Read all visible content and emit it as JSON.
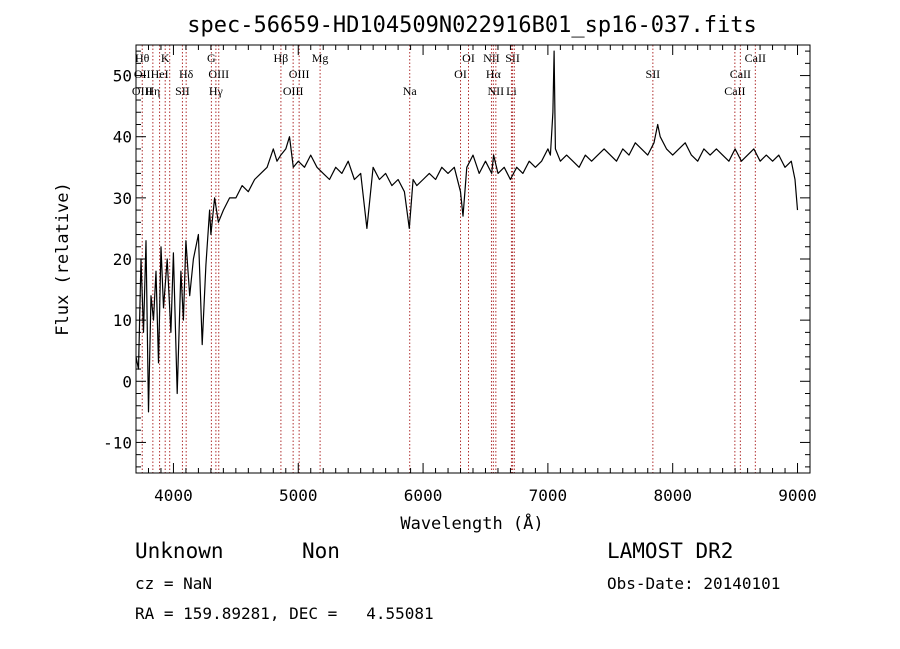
{
  "chart_data": {
    "type": "line",
    "title": "spec-56659-HD104509N022916B01_sp16-037.fits",
    "xlabel": "Wavelength (Å)",
    "ylabel": "Flux (relative)",
    "xlim": [
      3700,
      9100
    ],
    "ylim": [
      -15,
      55
    ],
    "xticks": [
      4000,
      5000,
      6000,
      7000,
      8000,
      9000
    ],
    "yticks": [
      -10,
      0,
      10,
      20,
      30,
      40,
      50
    ],
    "grid": false,
    "series": [
      {
        "color": "#000000",
        "x": [
          3700,
          3720,
          3740,
          3760,
          3780,
          3800,
          3820,
          3840,
          3860,
          3880,
          3900,
          3920,
          3950,
          3980,
          4000,
          4030,
          4060,
          4080,
          4100,
          4130,
          4160,
          4200,
          4230,
          4260,
          4290,
          4300,
          4330,
          4360,
          4400,
          4450,
          4500,
          4550,
          4600,
          4650,
          4700,
          4750,
          4800,
          4830,
          4860,
          4900,
          4930,
          4960,
          5000,
          5050,
          5100,
          5150,
          5200,
          5250,
          5300,
          5350,
          5400,
          5450,
          5500,
          5550,
          5600,
          5650,
          5700,
          5750,
          5800,
          5850,
          5890,
          5920,
          5950,
          6000,
          6050,
          6100,
          6150,
          6200,
          6250,
          6300,
          6320,
          6350,
          6400,
          6450,
          6500,
          6550,
          6565,
          6600,
          6650,
          6700,
          6750,
          6800,
          6850,
          6900,
          6950,
          7000,
          7020,
          7040,
          7050,
          7060,
          7100,
          7150,
          7200,
          7250,
          7300,
          7350,
          7400,
          7450,
          7500,
          7550,
          7600,
          7650,
          7700,
          7750,
          7800,
          7850,
          7880,
          7900,
          7950,
          8000,
          8050,
          8100,
          8150,
          8200,
          8250,
          8300,
          8350,
          8400,
          8450,
          8500,
          8550,
          8600,
          8650,
          8700,
          8750,
          8800,
          8850,
          8900,
          8950,
          8980,
          9000
        ],
        "values": [
          4,
          2,
          20,
          8,
          23,
          -5,
          14,
          10,
          18,
          3,
          22,
          12,
          20,
          8,
          21,
          -2,
          18,
          10,
          23,
          14,
          20,
          24,
          6,
          19,
          28,
          24,
          30,
          26,
          28,
          30,
          30,
          32,
          31,
          33,
          34,
          35,
          38,
          36,
          37,
          38,
          40,
          35,
          36,
          35,
          37,
          35,
          34,
          33,
          35,
          34,
          36,
          33,
          34,
          25,
          35,
          33,
          34,
          32,
          33,
          31,
          25,
          33,
          32,
          33,
          34,
          33,
          35,
          34,
          35,
          31,
          27,
          35,
          37,
          34,
          36,
          34,
          37,
          34,
          35,
          33,
          35,
          34,
          36,
          35,
          36,
          38,
          37,
          44,
          54,
          38,
          36,
          37,
          36,
          35,
          37,
          36,
          37,
          38,
          37,
          36,
          38,
          37,
          39,
          38,
          37,
          39,
          42,
          40,
          38,
          37,
          38,
          39,
          37,
          36,
          38,
          37,
          38,
          37,
          36,
          38,
          36,
          37,
          38,
          36,
          37,
          36,
          37,
          35,
          36,
          33,
          28
        ]
      }
    ],
    "lines": [
      {
        "x": 3750,
        "labels": [
          {
            "text": "Hθ",
            "row": 1
          },
          {
            "text": "OII",
            "row": 2
          },
          {
            "text": "OIII",
            "row": 3
          }
        ]
      },
      {
        "x": 3835,
        "labels": [
          {
            "text": "Hη",
            "row": 3
          }
        ]
      },
      {
        "x": 3889,
        "labels": [
          {
            "text": "HeI",
            "row": 2
          }
        ]
      },
      {
        "x": 3934,
        "labels": [
          {
            "text": "K",
            "row": 1
          }
        ]
      },
      {
        "x": 3970,
        "labels": []
      },
      {
        "x": 4072,
        "labels": [
          {
            "text": "SII",
            "row": 3
          }
        ]
      },
      {
        "x": 4102,
        "labels": [
          {
            "text": "Hδ",
            "row": 2
          }
        ]
      },
      {
        "x": 4304,
        "labels": [
          {
            "text": "G",
            "row": 1
          }
        ]
      },
      {
        "x": 4340,
        "labels": [
          {
            "text": "Hγ",
            "row": 3
          }
        ]
      },
      {
        "x": 4363,
        "labels": [
          {
            "text": "OIII",
            "row": 2
          }
        ]
      },
      {
        "x": 4861,
        "labels": [
          {
            "text": "Hβ",
            "row": 1
          }
        ]
      },
      {
        "x": 4959,
        "labels": [
          {
            "text": "OIII",
            "row": 3
          }
        ]
      },
      {
        "x": 5007,
        "labels": [
          {
            "text": "OIII",
            "row": 2
          }
        ]
      },
      {
        "x": 5175,
        "labels": [
          {
            "text": "Mg",
            "row": 1
          }
        ]
      },
      {
        "x": 5893,
        "labels": [
          {
            "text": "Na",
            "row": 3
          }
        ]
      },
      {
        "x": 6300,
        "labels": [
          {
            "text": "OI",
            "row": 2
          }
        ]
      },
      {
        "x": 6364,
        "labels": [
          {
            "text": "OI",
            "row": 1
          }
        ]
      },
      {
        "x": 6548,
        "labels": [
          {
            "text": "NII",
            "row": 1
          }
        ]
      },
      {
        "x": 6563,
        "labels": [
          {
            "text": "Hα",
            "row": 2
          }
        ]
      },
      {
        "x": 6583,
        "labels": [
          {
            "text": "NII",
            "row": 3
          }
        ]
      },
      {
        "x": 6708,
        "labels": [
          {
            "text": "Li",
            "row": 3
          }
        ]
      },
      {
        "x": 6717,
        "labels": [
          {
            "text": "SII",
            "row": 1
          }
        ]
      },
      {
        "x": 6731,
        "labels": []
      },
      {
        "x": 7841,
        "labels": [
          {
            "text": "SII",
            "row": 2
          }
        ]
      },
      {
        "x": 8498,
        "labels": [
          {
            "text": "CaII",
            "row": 3
          }
        ]
      },
      {
        "x": 8542,
        "labels": [
          {
            "text": "CaII",
            "row": 2
          }
        ]
      },
      {
        "x": 8662,
        "labels": [
          {
            "text": "CaII",
            "row": 1
          }
        ]
      }
    ]
  },
  "info": {
    "class": "Unknown",
    "subclass": "Non",
    "survey": "LAMOST DR2",
    "cz": "cz = NaN",
    "obs_date": "Obs-Date: 20140101",
    "coords": "RA = 159.89281, DEC =   4.55081"
  }
}
